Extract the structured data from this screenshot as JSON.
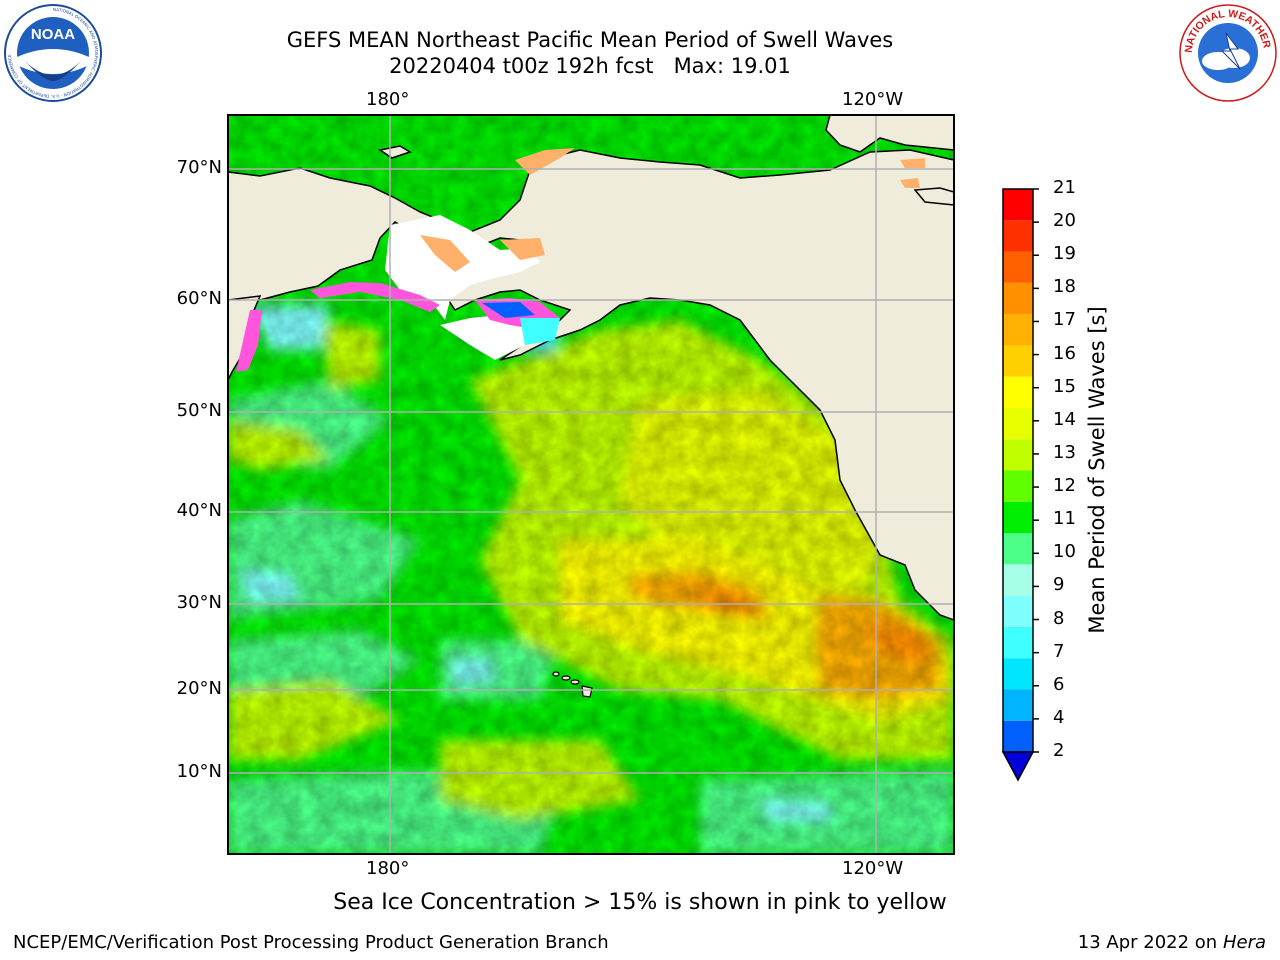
{
  "header": {
    "title_line1": "GEFS MEAN Northeast Pacific Mean Period of Swell Waves",
    "title_line2": "20220404 t00z 192h fcst   Max: 19.01"
  },
  "logos": {
    "noaa_text": "NOAA",
    "noaa_ring": "NATIONAL OCEANIC AND ATMOSPHERIC ADMINISTRATION · U.S. DEPARTMENT OF COMMERCE",
    "nws_ring": "NATIONAL WEATHER SERVICE"
  },
  "map": {
    "lon_labels": [
      "180°",
      "120°W"
    ],
    "lat_labels": [
      "70°N",
      "60°N",
      "50°N",
      "40°N",
      "30°N",
      "20°N",
      "10°N"
    ],
    "grid": true
  },
  "colorbar": {
    "label": "Mean Period of Swell Waves [s]",
    "ticks": [
      "2",
      "4",
      "6",
      "7",
      "8",
      "9",
      "10",
      "11",
      "12",
      "13",
      "14",
      "15",
      "16",
      "17",
      "18",
      "19",
      "20",
      "21"
    ],
    "colors": [
      "#0060ff",
      "#00b4ff",
      "#00e6ff",
      "#40ffff",
      "#80ffff",
      "#a8ffe8",
      "#4cff88",
      "#00ee00",
      "#60ff00",
      "#c0ff00",
      "#e8ff00",
      "#ffff00",
      "#ffd000",
      "#ffb000",
      "#ff9000",
      "#ff6000",
      "#ff3000",
      "#ff0000"
    ],
    "extend_color": "#0000dd"
  },
  "notes": {
    "sea_ice": "Sea Ice Concentration > 15% is shown in pink to yellow",
    "producer": "NCEP/EMC/Verification Post Processing Product Generation Branch",
    "date": "13 Apr 2022 on ",
    "machine": "Hera"
  }
}
